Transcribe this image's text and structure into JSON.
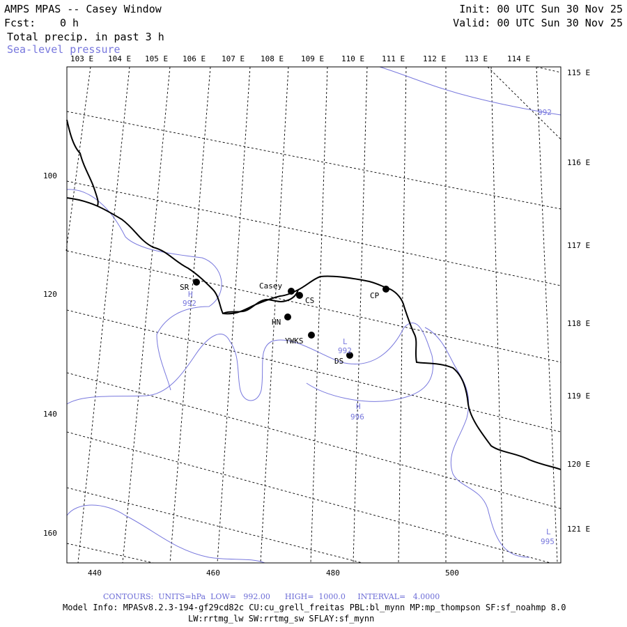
{
  "header": {
    "title": "AMPS MPAS -- Casey Window",
    "fcst_label": "Fcst:",
    "fcst_value": "0 h",
    "field1": "Total precip. in past 3 h",
    "field2": "Sea-level pressure",
    "init": "Init: 00 UTC Sun 30 Nov 25",
    "valid": "Valid: 00 UTC Sun 30 Nov 25"
  },
  "axes": {
    "x_ticks": [
      "440",
      "460",
      "480",
      "500"
    ],
    "y_ticks": [
      "100",
      "120",
      "140",
      "160"
    ]
  },
  "longitude_labels": {
    "top": [
      "103 E",
      "104 E",
      "105 E",
      "106 E",
      "107 E",
      "108 E",
      "109 E",
      "110 E",
      "111 E",
      "112 E",
      "113 E",
      "114 E"
    ],
    "right": [
      "115 E",
      "116 E",
      "117 E",
      "118 E",
      "119 E",
      "120 E",
      "121 E"
    ]
  },
  "stations": [
    {
      "id": "SR",
      "label": "SR"
    },
    {
      "id": "Casey",
      "label": "Casey"
    },
    {
      "id": "CS",
      "label": "CS"
    },
    {
      "id": "HN",
      "label": "HN"
    },
    {
      "id": "YWKS",
      "label": "YWKS"
    },
    {
      "id": "DS",
      "label": "DS"
    },
    {
      "id": "CP",
      "label": "CP"
    }
  ],
  "pressure_centers": [
    {
      "type": "H",
      "value": "992"
    },
    {
      "type": "L",
      "value": "992"
    },
    {
      "type": "H",
      "value": "996"
    },
    {
      "type": "L",
      "value": "995"
    }
  ],
  "contour_labels": [
    "992"
  ],
  "footer": {
    "contours": "CONTOURS:  UNITS=hPa  LOW=   992.00      HIGH=  1000.0     INTERVAL=   4.0000",
    "model_info": "Model Info: MPASv8.2.3-194-gf29cd82c CU:cu_grell_freitas PBL:bl_mynn MP:mp_thompson SF:sf_noahmp 8.0",
    "model_info2": "LW:rrtmg_lw SW:rrtmg_sw SFLAY:sf_mynn"
  },
  "colors": {
    "contour": "#7777dd",
    "coastline": "#000000",
    "background": "#ffffff"
  }
}
